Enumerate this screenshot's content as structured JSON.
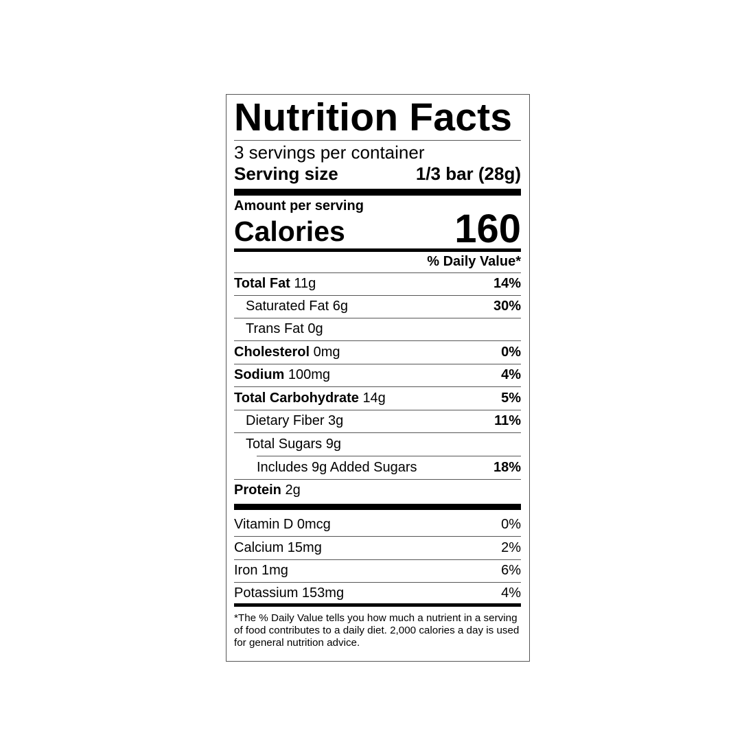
{
  "title": "Nutrition Facts",
  "servings_per_container": "3 servings per container",
  "serving_size": {
    "label": "Serving size",
    "value": "1/3 bar (28g)"
  },
  "amount_per_serving": "Amount per serving",
  "calories": {
    "label": "Calories",
    "value": "160"
  },
  "daily_value_header": "% Daily Value*",
  "nutrients": [
    {
      "name": "Total Fat",
      "amount": "11g",
      "dv": "14%"
    },
    {
      "name": "Saturated Fat 6g",
      "dv": "30%"
    },
    {
      "name": "Trans Fat 0g",
      "dv": ""
    },
    {
      "name": "Cholesterol",
      "amount": "0mg",
      "dv": "0%"
    },
    {
      "name": "Sodium",
      "amount": "100mg",
      "dv": "4%"
    },
    {
      "name": "Total Carbohydrate",
      "amount": "14g",
      "dv": "5%"
    },
    {
      "name": "Dietary Fiber 3g",
      "dv": "11%"
    },
    {
      "name": "Total Sugars 9g",
      "dv": ""
    },
    {
      "name": "Includes 9g Added Sugars",
      "dv": "18%"
    },
    {
      "name": "Protein",
      "amount": "2g",
      "dv": ""
    }
  ],
  "vitamins": [
    {
      "name": "Vitamin D 0mcg",
      "dv": "0%"
    },
    {
      "name": "Calcium 15mg",
      "dv": "2%"
    },
    {
      "name": "Iron 1mg",
      "dv": "6%"
    },
    {
      "name": "Potassium 153mg",
      "dv": "4%"
    }
  ],
  "footnote": "*The % Daily Value tells you how much a nutrient in a serving of food contributes to a daily diet. 2,000 calories a day is used for general nutrition advice."
}
